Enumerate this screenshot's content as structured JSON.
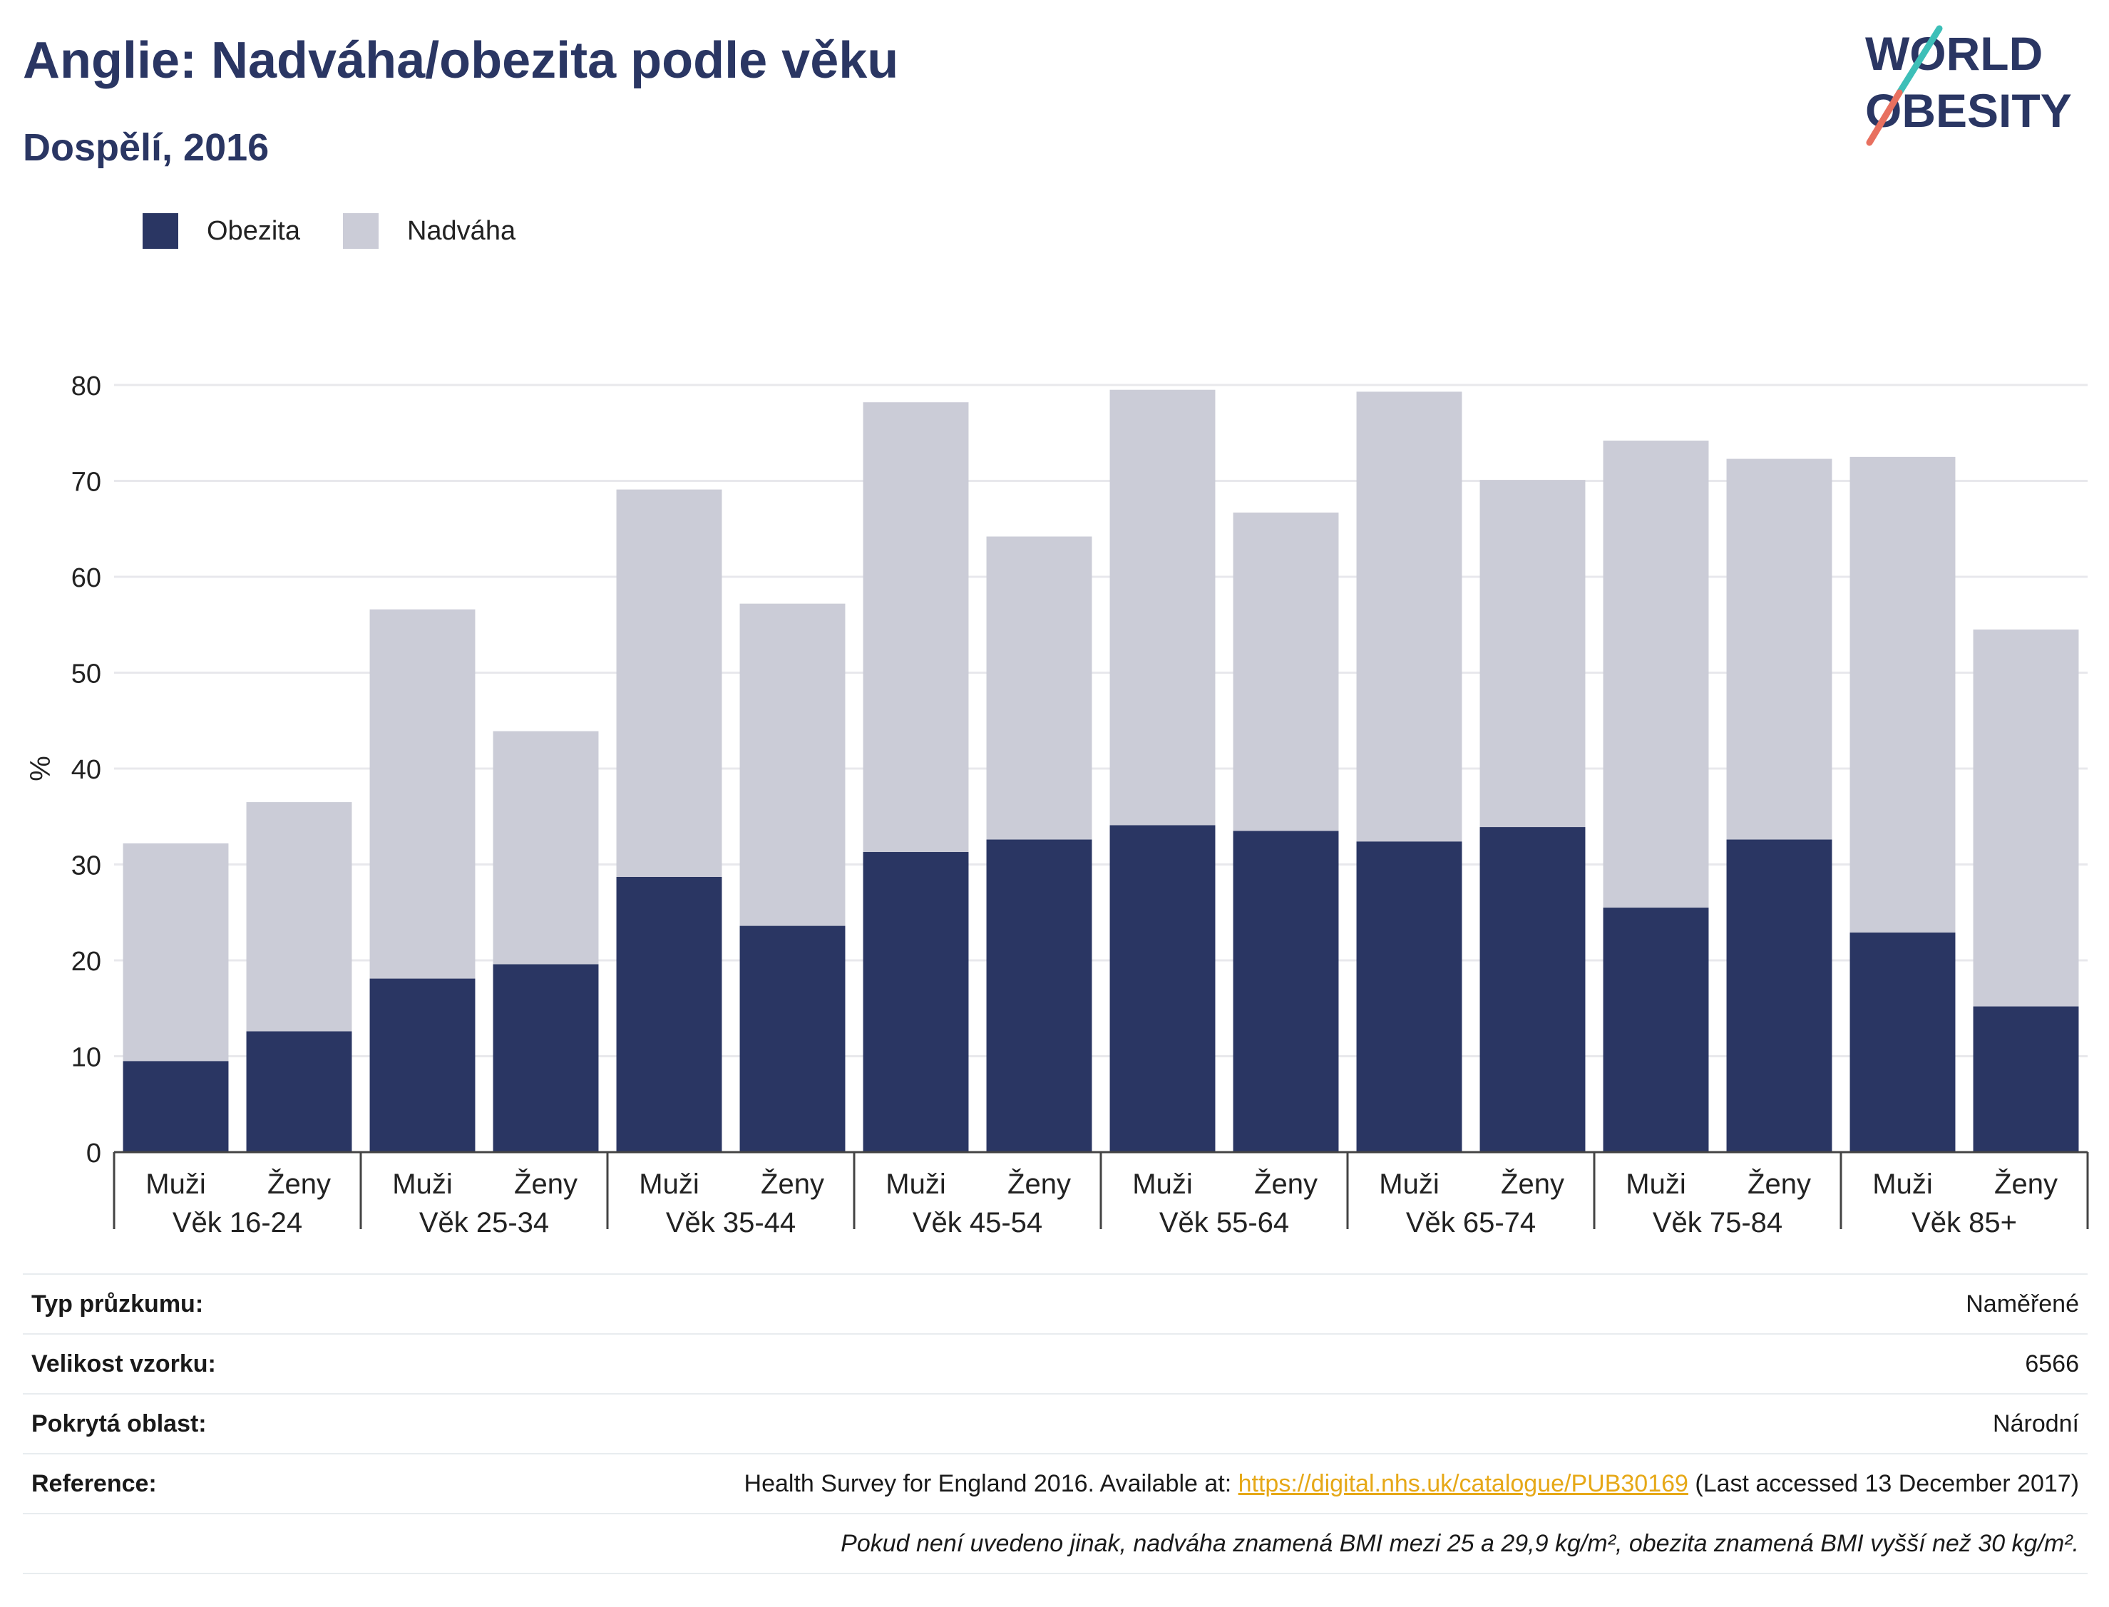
{
  "title": "Anglie: Nadváha/obezita podle věku",
  "subtitle": "Dospělí, 2016",
  "logo": {
    "line1": "WORLD",
    "line2": "OBESITY",
    "accent_top": "#3dbfb8",
    "accent_bottom": "#e8705f"
  },
  "colors": {
    "obesity": "#2a3663",
    "overweight": "#cbccd7",
    "grid": "#e8e8ec",
    "axis": "#444444"
  },
  "chart_data": {
    "type": "bar",
    "stacked": true,
    "ylabel": "%",
    "ylim": [
      0,
      80
    ],
    "yticks": [
      0,
      10,
      20,
      30,
      40,
      50,
      60,
      70,
      80
    ],
    "groups": [
      "Věk 16-24",
      "Věk 25-34",
      "Věk 35-44",
      "Věk 45-54",
      "Věk 55-64",
      "Věk 65-74",
      "Věk 75-84",
      "Věk 85+"
    ],
    "subcategories": [
      "Muži",
      "Ženy"
    ],
    "series": [
      {
        "name": "Obezita",
        "values": [
          9.5,
          12.6,
          18.1,
          19.6,
          28.7,
          23.6,
          31.3,
          32.6,
          34.1,
          33.5,
          32.4,
          33.9,
          25.5,
          32.6,
          22.9,
          15.2
        ]
      },
      {
        "name": "Nadváha",
        "values": [
          22.7,
          23.9,
          38.5,
          24.3,
          40.4,
          33.6,
          46.9,
          31.6,
          45.4,
          33.2,
          46.9,
          36.2,
          48.7,
          39.7,
          49.6,
          39.3
        ]
      }
    ],
    "grid": true,
    "legend": "top-left"
  },
  "info": {
    "survey_type": {
      "label": "Typ průzkumu:",
      "value": "Naměřené"
    },
    "sample_size": {
      "label": "Velikost vzorku:",
      "value": "6566"
    },
    "area": {
      "label": "Pokrytá oblast:",
      "value": "Národní"
    },
    "reference": {
      "label": "Reference:",
      "prefix": "Health Survey for England 2016. Available at: ",
      "link": "https://digital.nhs.uk/catalogue/PUB30169",
      "suffix": " (Last accessed 13 December 2017)"
    },
    "note": "Pokud není uvedeno jinak, nadváha znamená BMI mezi 25 a 29,9 kg/m², obezita znamená BMI vyšší než 30 kg/m²."
  }
}
